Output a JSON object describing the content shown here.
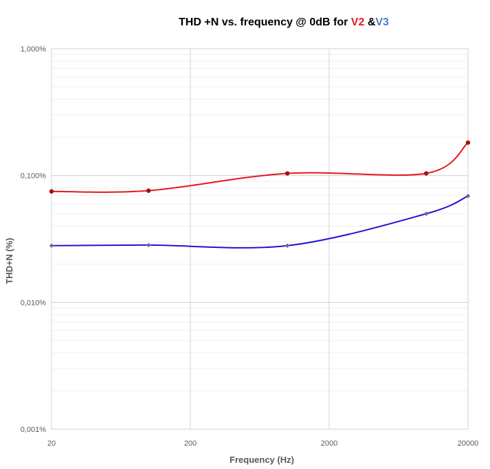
{
  "chart_data": {
    "type": "line",
    "title": {
      "prefix": "THD +N vs. frequency @ 0dB for ",
      "series_1": "V2",
      "joiner": " &",
      "series_2": "V3",
      "color_prefix": "#000000",
      "color_series_1": "#e8141b",
      "color_series_2": "#4a7ebb"
    },
    "xlabel": "Frequency (Hz)",
    "ylabel": "THD+N (%)",
    "x_scale": "log",
    "y_scale": "log",
    "xlim": [
      20,
      20000
    ],
    "ylim": [
      0.001,
      1.0
    ],
    "x_ticks": [
      {
        "value": 20,
        "label": "20"
      },
      {
        "value": 200,
        "label": "200"
      },
      {
        "value": 2000,
        "label": "2000"
      },
      {
        "value": 20000,
        "label": "20000"
      }
    ],
    "y_ticks": [
      {
        "value": 0.001,
        "label": "0,001%"
      },
      {
        "value": 0.01,
        "label": "0,010%"
      },
      {
        "value": 0.1,
        "label": "0,100%"
      },
      {
        "value": 1.0,
        "label": "1,000%"
      }
    ],
    "grid": true,
    "legend": "none",
    "series": [
      {
        "line_color": "#e8141b",
        "marker_color": "#a5100f",
        "marker": "circle",
        "x": [
          20,
          100,
          1000,
          10000,
          20000
        ],
        "y": [
          0.075,
          0.076,
          0.104,
          0.104,
          0.182
        ]
      },
      {
        "line_color": "#1e10d6",
        "marker_color": "#6a6a8a",
        "marker": "diamond",
        "x": [
          20,
          100,
          1000,
          10000,
          20000
        ],
        "y": [
          0.028,
          0.0283,
          0.028,
          0.05,
          0.069
        ]
      }
    ]
  }
}
